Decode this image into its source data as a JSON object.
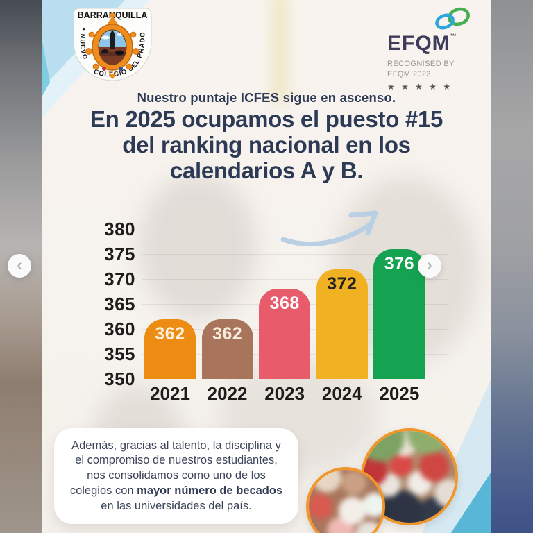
{
  "theme": {
    "headline_navy": "#2d3a55",
    "post_background": "#f6f2ed",
    "corner_blue_light": "#b9def0",
    "corner_blue_deep": "#58b6d6",
    "photo_border_orange": "#f0962a",
    "arrow_blue": "#b9cfe4"
  },
  "crest": {
    "top": "BARRANQUILLA",
    "left": "• NUEVO",
    "bottom_right": "COLEGIO   DEL   PRADO •"
  },
  "efqm": {
    "brand": "EFQM",
    "tm": "™",
    "line1": "RECOGNISED BY",
    "line2": "EFQM 2023",
    "stars": "★ ★ ★ ★ ★"
  },
  "headline": {
    "kicker": "Nuestro puntaje ICFES sigue en ascenso.",
    "line1": "En 2025 ocupamos el puesto #15",
    "line2": "del ranking nacional en los",
    "line3": "calendarios A y B."
  },
  "chart_data": {
    "type": "bar",
    "categories": [
      "2021",
      "2022",
      "2023",
      "2024",
      "2025"
    ],
    "values": [
      362,
      362,
      368,
      372,
      376
    ],
    "bar_colors": [
      "#ED8C13",
      "#A9745C",
      "#E85B6B",
      "#F0B123",
      "#16A351"
    ],
    "value_label_colors": [
      "#FBF0DC",
      "#F8EDDC",
      "#FFFFFF",
      "#232323",
      "#FFFFFF"
    ],
    "ylim": [
      350,
      380
    ],
    "yticks": [
      380,
      375,
      370,
      365,
      360,
      355,
      350
    ],
    "grid_values": [
      375,
      370,
      365,
      360,
      355
    ],
    "grid": true,
    "legend": false,
    "xlabel": "",
    "ylabel": ""
  },
  "footer": {
    "before": "Además, gracias al talento, la disciplina y el compromiso de nuestros estudiantes, nos consolidamos como uno de los colegios con ",
    "bold": "mayor número de becados",
    "after": " en las universidades del país."
  },
  "carousel": {
    "prev": "‹",
    "next": "›"
  }
}
